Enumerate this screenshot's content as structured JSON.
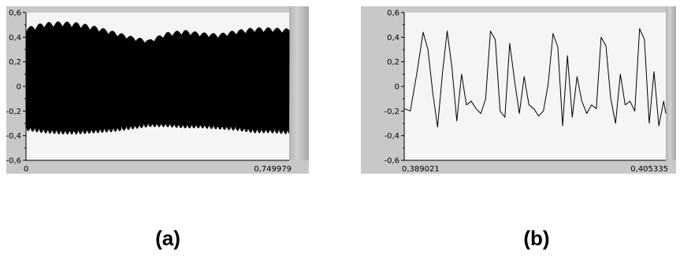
{
  "colors": {
    "plot_bg": "#f5f5f5",
    "frame": "#c8c8c8",
    "trace": "#000000",
    "scrollbar": "#b4b4b4"
  },
  "chart_data": [
    {
      "type": "line",
      "caption": "(a)",
      "xlim": [
        0,
        0.749979
      ],
      "ylim": [
        -0.6,
        0.6
      ],
      "x_tick_labels": [
        "0",
        "0,749979"
      ],
      "y_tick_labels": [
        "0,6",
        "0,4",
        "0,2",
        "0",
        "-0,2",
        "-0,4",
        "-0,6"
      ],
      "y_ticks": [
        0.6,
        0.4,
        0.2,
        0,
        -0.2,
        -0.4,
        -0.6
      ],
      "grid": false,
      "series": [
        {
          "envelope_x": [
            0,
            0.05,
            0.1,
            0.15,
            0.2,
            0.25,
            0.3,
            0.35,
            0.4,
            0.45,
            0.5,
            0.55,
            0.6,
            0.65,
            0.7,
            0.749979
          ],
          "envelope_upper": [
            0.48,
            0.52,
            0.53,
            0.52,
            0.49,
            0.45,
            0.41,
            0.38,
            0.44,
            0.46,
            0.44,
            0.43,
            0.46,
            0.48,
            0.48,
            0.47
          ],
          "envelope_lower": [
            -0.36,
            -0.38,
            -0.39,
            -0.39,
            -0.38,
            -0.37,
            -0.35,
            -0.33,
            -0.33,
            -0.34,
            -0.34,
            -0.35,
            -0.36,
            -0.38,
            -0.38,
            -0.39
          ]
        }
      ]
    },
    {
      "type": "line",
      "caption": "(b)",
      "xlim": [
        0.389021,
        0.405335
      ],
      "ylim": [
        -0.6,
        0.6
      ],
      "x_tick_labels": [
        "0,389021",
        "0,405335"
      ],
      "y_tick_labels": [
        "0,6",
        "0,4",
        "0,2",
        "0",
        "-0,2",
        "-0,4",
        "-0,6"
      ],
      "y_ticks": [
        0.6,
        0.4,
        0.2,
        0,
        -0.2,
        -0.4,
        -0.6
      ],
      "grid": false,
      "series": [
        {
          "x": [
            0.389021,
            0.3894,
            0.3898,
            0.3902,
            0.3905,
            0.3908,
            0.3911,
            0.3914,
            0.3917,
            0.392,
            0.3923,
            0.3926,
            0.3929,
            0.3932,
            0.3935,
            0.3938,
            0.3941,
            0.3944,
            0.3947,
            0.395,
            0.3953,
            0.3956,
            0.3959,
            0.3962,
            0.3965,
            0.3968,
            0.3971,
            0.3974,
            0.3977,
            0.398,
            0.3983,
            0.3986,
            0.3989,
            0.3992,
            0.3995,
            0.3998,
            0.4001,
            0.4004,
            0.4007,
            0.401,
            0.4013,
            0.4016,
            0.4019,
            0.4022,
            0.4025,
            0.4028,
            0.4031,
            0.4034,
            0.4037,
            0.404,
            0.4043,
            0.4046,
            0.4049,
            0.4052,
            0.405335
          ],
          "y": [
            -0.18,
            -0.2,
            0.1,
            0.44,
            0.3,
            -0.05,
            -0.33,
            0.1,
            0.45,
            0.15,
            -0.28,
            0.1,
            -0.15,
            -0.12,
            -0.18,
            -0.22,
            -0.1,
            0.45,
            0.38,
            -0.2,
            -0.25,
            0.35,
            0.05,
            -0.22,
            0.08,
            -0.15,
            -0.18,
            -0.24,
            -0.2,
            0.02,
            0.43,
            0.32,
            -0.32,
            0.25,
            -0.25,
            0.08,
            -0.12,
            -0.22,
            -0.15,
            -0.18,
            0.4,
            0.33,
            -0.1,
            -0.3,
            0.1,
            -0.15,
            -0.12,
            -0.2,
            0.47,
            0.38,
            -0.3,
            0.12,
            -0.32,
            -0.12,
            -0.22
          ]
        }
      ]
    }
  ]
}
